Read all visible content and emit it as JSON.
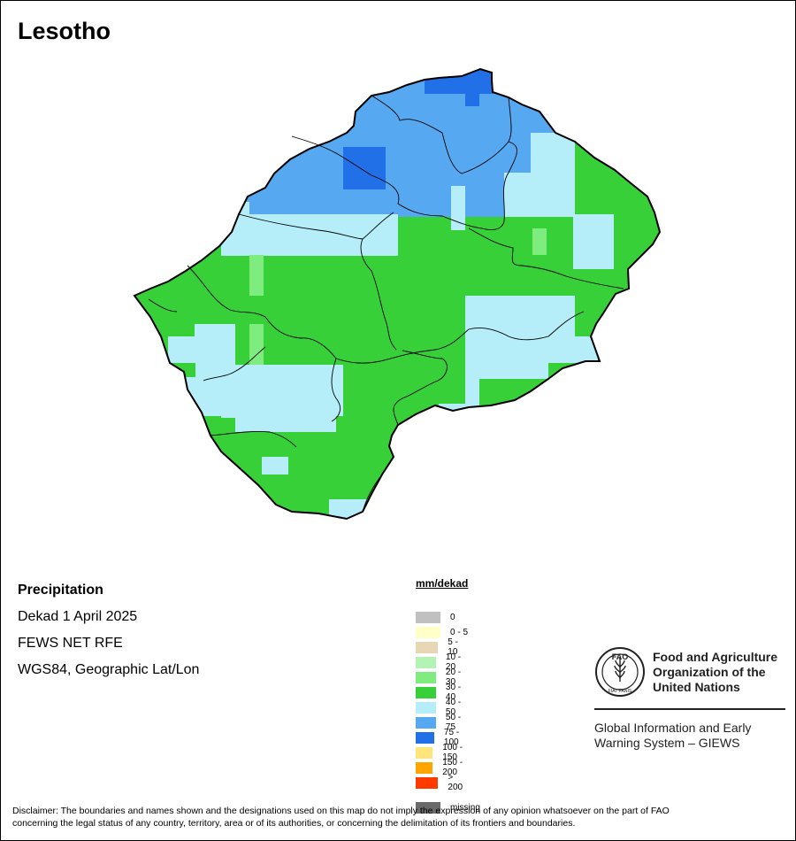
{
  "map_title": "Lesotho",
  "info": {
    "heading": "Precipitation",
    "period": "Dekad 1 April 2025",
    "source": "FEWS NET RFE",
    "projection": "WGS84, Geographic Lat/Lon"
  },
  "legend": {
    "title": "mm/dekad",
    "classes": [
      {
        "label": "0",
        "color": "#c0c0c0"
      },
      {
        "label": "0 - 5",
        "color": "#ffffc8"
      },
      {
        "label": "5 - 10",
        "color": "#e8d7b5"
      },
      {
        "label": "10 - 20",
        "color": "#b3f3b3"
      },
      {
        "label": "20 - 30",
        "color": "#7fec7f"
      },
      {
        "label": "30 - 40",
        "color": "#38d038"
      },
      {
        "label": "40 - 50",
        "color": "#b5eef8"
      },
      {
        "label": "50 - 75",
        "color": "#56a8f0"
      },
      {
        "label": "75 - 100",
        "color": "#2270e8"
      },
      {
        "label": "100 - 150",
        "color": "#ffe57a"
      },
      {
        "label": "150 - 200",
        "color": "#ffa500"
      },
      {
        "label": "> 200",
        "color": "#ff3a00"
      }
    ],
    "missing": {
      "label": "missing",
      "color": "#6a6a6a"
    }
  },
  "fao": {
    "logo_text": "FAO",
    "logo_motto": "FIAT PANIS",
    "name_line1": "Food and Agriculture",
    "name_line2": "Organization of the",
    "name_line3": "United Nations",
    "system_line1": "Global Information and Early",
    "system_line2": "Warning System – GIEWS"
  },
  "disclaimer_line1": "Disclaimer: The boundaries and names shown and the designations used on this map do not imply the expression of any opinion whatsoever on the part of FAO",
  "disclaimer_line2": "concerning the legal status of any country, territory, area or of its authorities, or concerning the delimitation of its frontiers and boundaries."
}
